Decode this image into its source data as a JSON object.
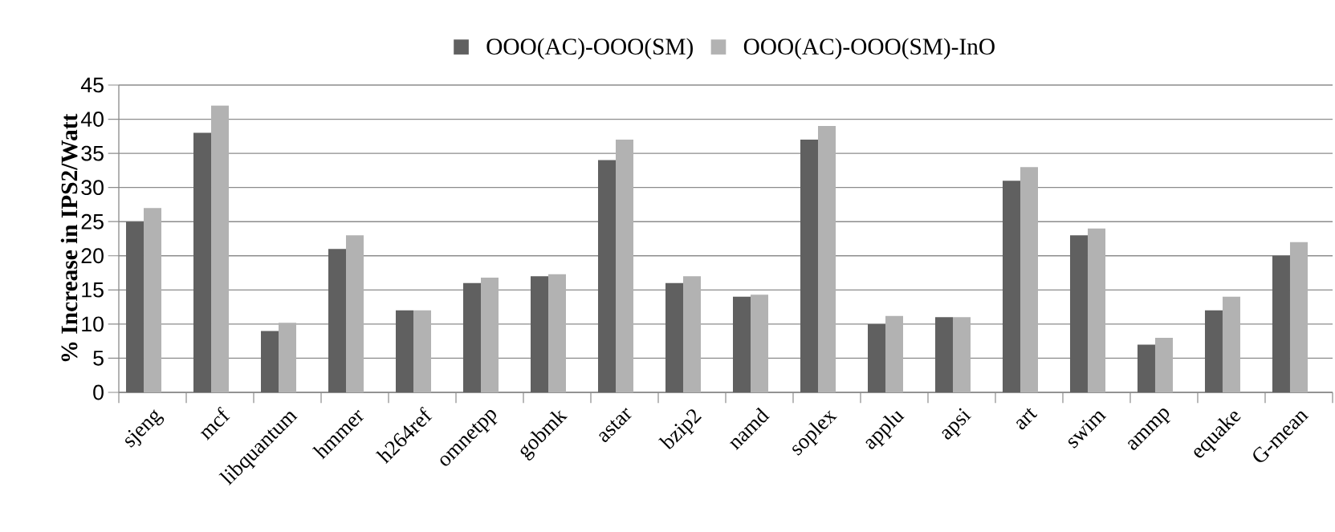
{
  "chart_data": {
    "type": "bar",
    "ylabel": "%  Increase in IPS2/Watt",
    "categories": [
      "sjeng",
      "mcf",
      "libquantum",
      "hmmer",
      "h264ref",
      "omnetpp",
      "gobmk",
      "astar",
      "bzip2",
      "namd",
      "soplex",
      "applu",
      "apsi",
      "art",
      "swim",
      "ammp",
      "equake",
      "G-mean"
    ],
    "series": [
      {
        "name": "OOO(AC)-OOO(SM)",
        "color": "#606060",
        "values": [
          25,
          38,
          9,
          21,
          12,
          16,
          17,
          34,
          16,
          14,
          37,
          10,
          11,
          31,
          23,
          7,
          12,
          20
        ]
      },
      {
        "name": "OOO(AC)-OOO(SM)-InO",
        "color": "#b2b2b2",
        "values": [
          27,
          42,
          10.2,
          23,
          12,
          16.8,
          17.3,
          37,
          17,
          14.3,
          39,
          11.2,
          11,
          33,
          24,
          8,
          14,
          22
        ]
      }
    ],
    "ylim": [
      0,
      45
    ],
    "yticks": [
      0,
      5,
      10,
      15,
      20,
      25,
      30,
      35,
      40,
      45
    ],
    "grid": "y",
    "legend": "top"
  }
}
